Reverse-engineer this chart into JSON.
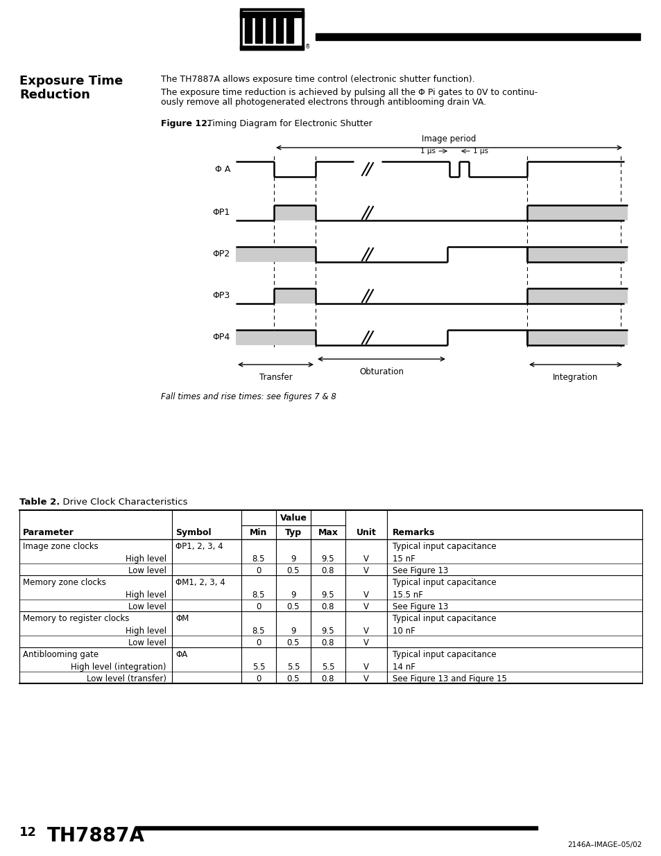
{
  "page_bg": "#ffffff",
  "section_title_line1": "Exposure Time",
  "section_title_line2": "Reduction",
  "para1": "The TH7887A allows exposure time control (electronic shutter function).",
  "para2_line1": "The exposure time reduction is achieved by pulsing all the Φ Pi gates to 0V to continu-",
  "para2_line2": "ously remove all photogenerated electrons through antiblooming drain VA.",
  "fig_caption_bold": "Figure 12.",
  "fig_caption_rest": "  Timing Diagram for Electronic Shutter",
  "figure_note": "Fall times and rise times: see figures 7 & 8",
  "table_title_bold": "Table 2.",
  "table_title_rest": "  Drive Clock Characteristics",
  "footer_page": "12",
  "footer_title": "TH7887A",
  "footer_note": "2146A–IMAGE–05/02",
  "table_rows": [
    [
      "Image zone clocks",
      "ΦP1, 2, 3, 4",
      "",
      "",
      "",
      "",
      "Typical input capacitance"
    ],
    [
      "High level",
      "",
      "8.5",
      "9",
      "9.5",
      "V",
      "15 nF"
    ],
    [
      "Low level",
      "",
      "0",
      "0.5",
      "0.8",
      "V",
      "See Figure 13"
    ],
    [
      "Memory zone clocks",
      "ΦM1, 2, 3, 4",
      "",
      "",
      "",
      "",
      "Typical input capacitance"
    ],
    [
      "High level",
      "",
      "8.5",
      "9",
      "9.5",
      "V",
      "15.5 nF"
    ],
    [
      "Low level",
      "",
      "0",
      "0.5",
      "0.8",
      "V",
      "See Figure 13"
    ],
    [
      "Memory to register clocks",
      "ΦM",
      "",
      "",
      "",
      "",
      "Typical input capacitance"
    ],
    [
      "High level",
      "",
      "8.5",
      "9",
      "9.5",
      "V",
      "10 nF"
    ],
    [
      "Low level",
      "",
      "0",
      "0.5",
      "0.8",
      "V",
      ""
    ],
    [
      "Antiblooming gate",
      "ΦA",
      "",
      "",
      "",
      "",
      "Typical input capacitance"
    ],
    [
      "High level (integration)",
      "",
      "5.5",
      "5.5",
      "5.5",
      "V",
      "14 nF"
    ],
    [
      "Low level (transfer)",
      "",
      "0",
      "0.5",
      "0.8",
      "V",
      "See Figure 13 and Figure 15"
    ]
  ],
  "group_header_rows": [
    0,
    3,
    6,
    9
  ],
  "subrow_indent": 130
}
